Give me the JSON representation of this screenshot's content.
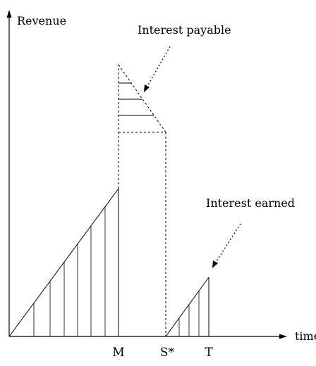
{
  "diagram": {
    "y_axis_label": "Revenue",
    "x_axis_label": "time",
    "tick_labels": [
      "M",
      "S*",
      "T"
    ],
    "annotations": {
      "interest_payable": "Interest payable",
      "interest_earned": "Interest earned"
    },
    "colors": {
      "line": "#000000",
      "background": "#ffffff"
    }
  }
}
